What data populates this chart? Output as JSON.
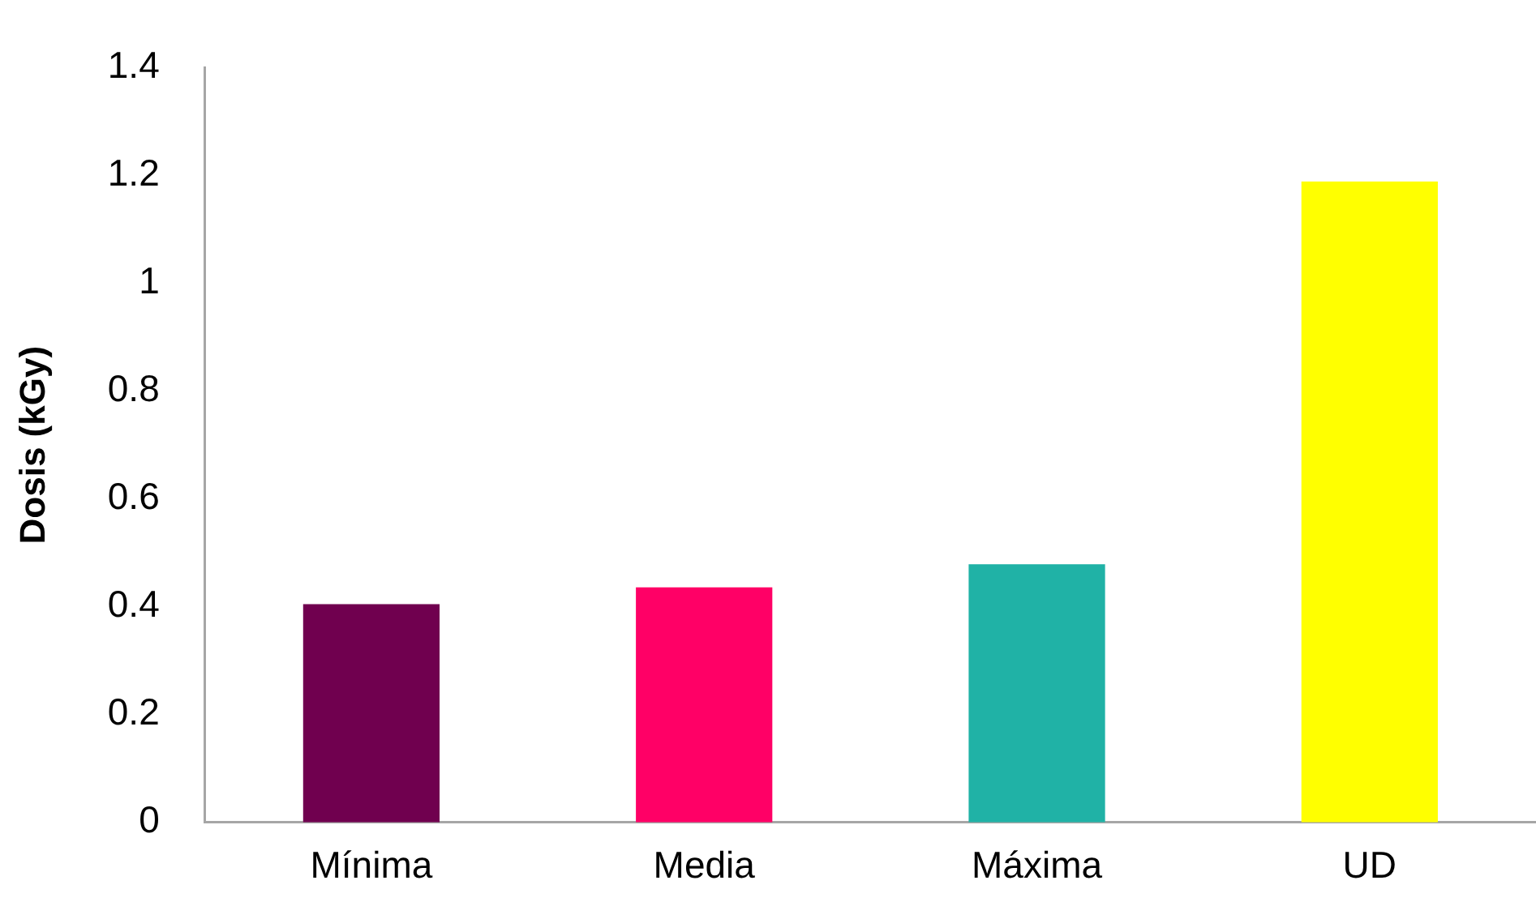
{
  "chart_data": {
    "type": "bar",
    "ylabel": "Dosis (kGy)",
    "categories": [
      "Mínima",
      "Media",
      "Máxima",
      "UD"
    ],
    "values": [
      0.405,
      0.436,
      0.479,
      1.189
    ],
    "colors": [
      "#70004f",
      "#ff0066",
      "#20b2a6",
      "#ffff00"
    ],
    "ylim": [
      0,
      1.4
    ],
    "yticks": [
      0,
      0.2,
      0.4,
      0.6,
      0.8,
      1,
      1.2,
      1.4
    ],
    "grid": false,
    "legend": false
  }
}
